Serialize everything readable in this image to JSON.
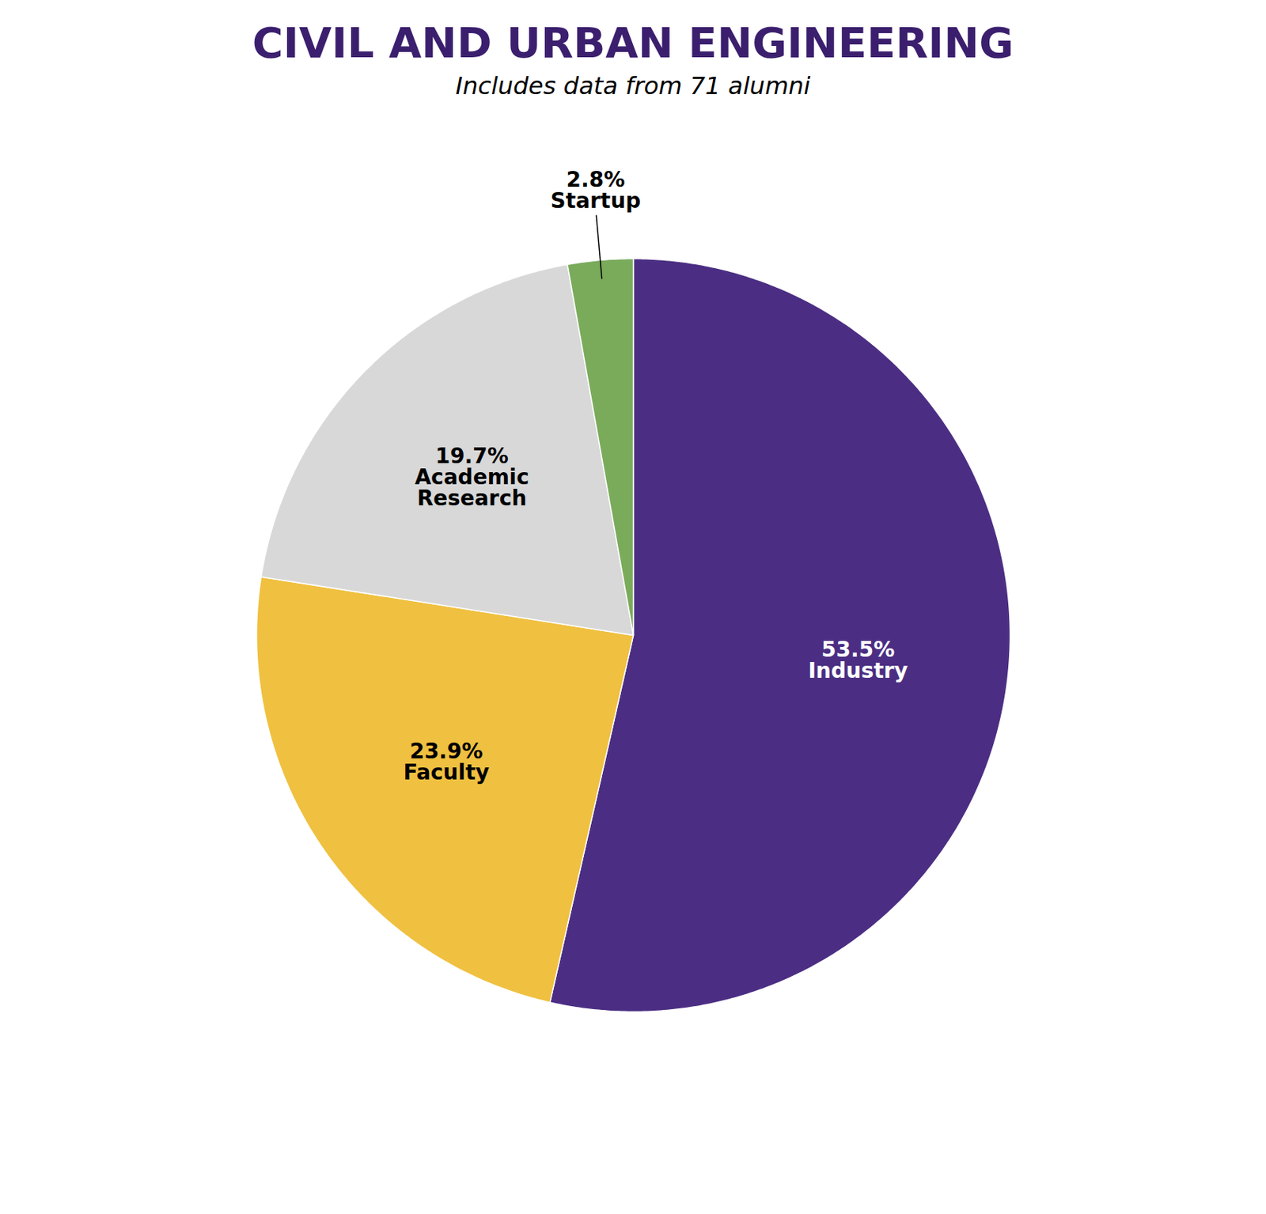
{
  "chart_data": {
    "type": "pie",
    "title": "CIVIL AND URBAN ENGINEERING",
    "subtitle": "Includes data from 71 alumni",
    "categories": [
      "Industry",
      "Faculty",
      "Academic\nResearch",
      "Startup"
    ],
    "values": [
      53.5,
      23.9,
      19.7,
      2.8
    ],
    "value_labels": [
      "53.5%",
      "23.9%",
      "19.7%",
      "2.8%"
    ],
    "colors": [
      "#4b2e83",
      "#f0c040",
      "#d8d8d8",
      "#7aab5b"
    ],
    "data_labels": true
  }
}
